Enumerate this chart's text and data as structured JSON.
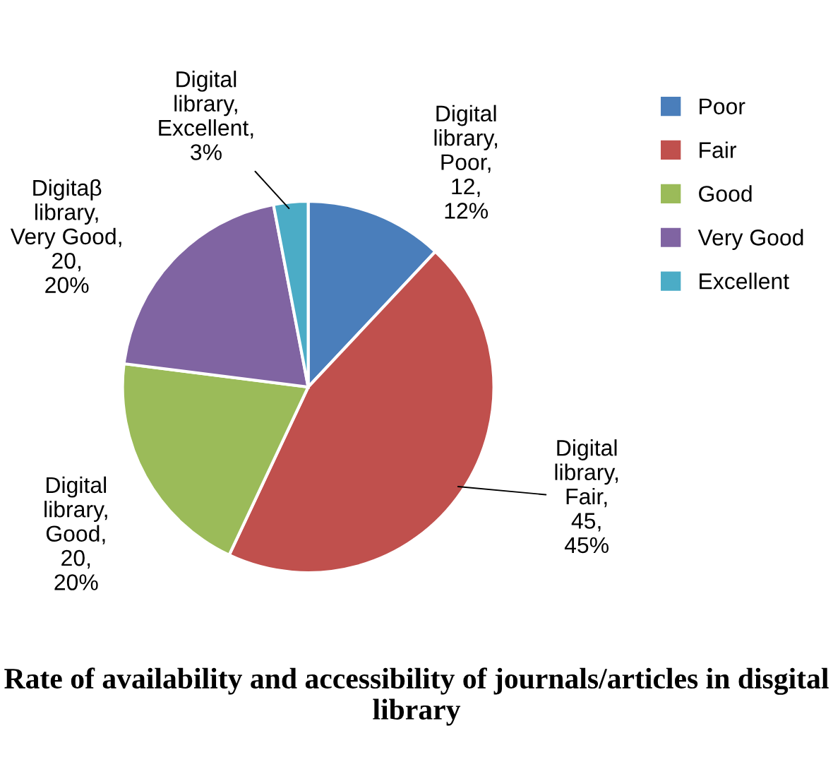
{
  "chart_data": {
    "type": "pie",
    "title": "Rate of availability and accessibility of journals/articles in disgital library",
    "categories": [
      "Poor",
      "Fair",
      "Good",
      "Very Good",
      "Excellent"
    ],
    "values": [
      12,
      45,
      20,
      20,
      3
    ],
    "colors": [
      "#4a7ebb",
      "#c0504d",
      "#9bbb59",
      "#8064a2",
      "#4bacc6"
    ],
    "value_labels": [
      "Digital library, Poor, 12, 12%",
      "Digital library, Fair, 45, 45%",
      "Digital library, Good, 20, 20%",
      "Digitaβ library, Very Good, 20, 20%",
      "Digital library, Excellent, 3%"
    ],
    "legend": "right"
  }
}
